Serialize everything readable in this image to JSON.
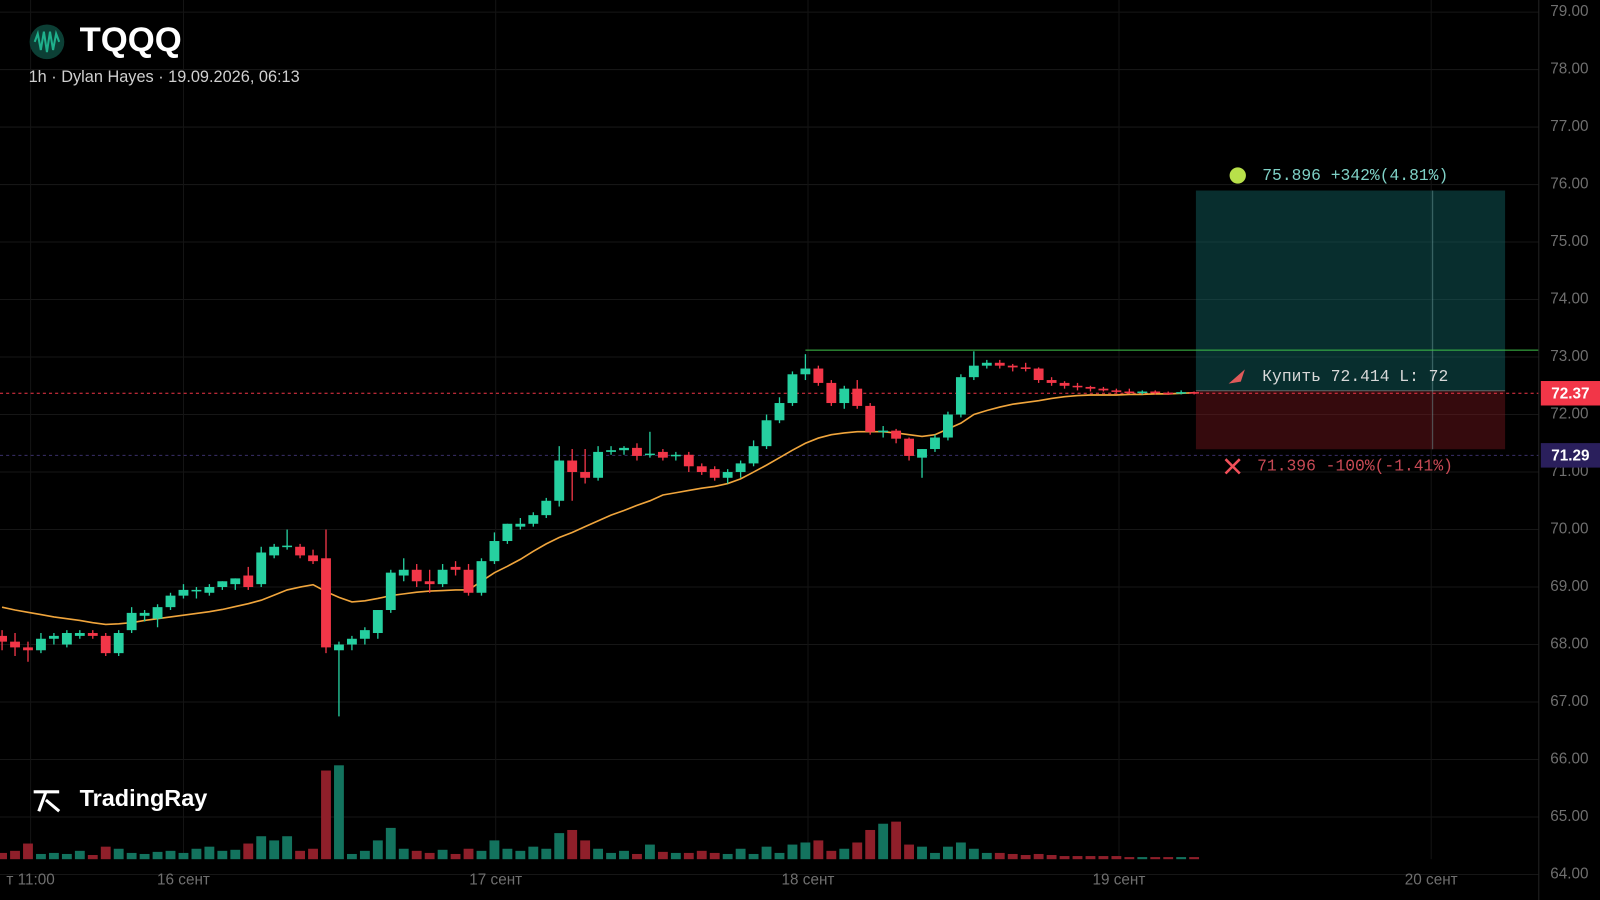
{
  "header": {
    "symbol": "TQQQ",
    "subtitle": "1h · Dylan Hayes · 19.09.2026, 06:13"
  },
  "brand": "TradingRay",
  "chart_data": {
    "type": "candlestick",
    "up_color": "#26d0a0",
    "down_color": "#f23648",
    "ma_color": "#f0a53c",
    "xlim": [
      -0.16,
      118.6
    ],
    "ylim": [
      64.0,
      79.21
    ],
    "yticks": [
      {
        "value": 64,
        "label": "64.00"
      },
      {
        "value": 65,
        "label": "65.00"
      },
      {
        "value": 66,
        "label": "66.00"
      },
      {
        "value": 67,
        "label": "67.00"
      },
      {
        "value": 68,
        "label": "68.00"
      },
      {
        "value": 69,
        "label": "69.00"
      },
      {
        "value": 70,
        "label": "70.00"
      },
      {
        "value": 71,
        "label": "71.00"
      },
      {
        "value": 72,
        "label": "72.00"
      },
      {
        "value": 73,
        "label": "73.00"
      },
      {
        "value": 74,
        "label": "74.00"
      },
      {
        "value": 75,
        "label": "75.00"
      },
      {
        "value": 76,
        "label": "76.00"
      },
      {
        "value": 77,
        "label": "77.00"
      },
      {
        "value": 78,
        "label": "78.00"
      },
      {
        "value": 79,
        "label": "79.00"
      }
    ],
    "xticks": [
      {
        "value": 2.2,
        "label": "т 11:00"
      },
      {
        "value": 14,
        "label": "16 сент"
      },
      {
        "value": 38.1,
        "label": "17 сент"
      },
      {
        "value": 62.2,
        "label": "18 сент"
      },
      {
        "value": 86.2,
        "label": "19 сент"
      },
      {
        "value": 110.3,
        "label": "20 сент"
      }
    ],
    "grid": true,
    "ohlc": [
      [
        68.15,
        68.25,
        67.9,
        68.05
      ],
      [
        68.05,
        68.2,
        67.8,
        67.95
      ],
      [
        67.95,
        68.05,
        67.7,
        67.9
      ],
      [
        67.9,
        68.2,
        67.85,
        68.1
      ],
      [
        68.1,
        68.2,
        68.0,
        68.15
      ],
      [
        68.0,
        68.25,
        67.95,
        68.2
      ],
      [
        68.15,
        68.25,
        68.1,
        68.2
      ],
      [
        68.2,
        68.25,
        68.1,
        68.15
      ],
      [
        68.15,
        68.2,
        67.8,
        67.85
      ],
      [
        67.85,
        68.25,
        67.8,
        68.2
      ],
      [
        68.25,
        68.65,
        68.2,
        68.55
      ],
      [
        68.5,
        68.6,
        68.4,
        68.55
      ],
      [
        68.45,
        68.7,
        68.3,
        68.65
      ],
      [
        68.65,
        68.9,
        68.6,
        68.85
      ],
      [
        68.85,
        69.05,
        68.8,
        68.95
      ],
      [
        68.95,
        69.0,
        68.8,
        68.95
      ],
      [
        68.9,
        69.05,
        68.85,
        69.0
      ],
      [
        69.0,
        69.1,
        68.95,
        69.1
      ],
      [
        69.05,
        69.15,
        68.95,
        69.15
      ],
      [
        69.2,
        69.35,
        68.95,
        69.0
      ],
      [
        69.05,
        69.7,
        69.0,
        69.6
      ],
      [
        69.55,
        69.75,
        69.5,
        69.7
      ],
      [
        69.7,
        70.0,
        69.65,
        69.72
      ],
      [
        69.7,
        69.75,
        69.5,
        69.55
      ],
      [
        69.55,
        69.65,
        69.4,
        69.45
      ],
      [
        69.5,
        70.0,
        67.85,
        67.95
      ],
      [
        67.9,
        68.05,
        66.75,
        68.0
      ],
      [
        68.0,
        68.15,
        67.9,
        68.1
      ],
      [
        68.1,
        68.3,
        68.0,
        68.25
      ],
      [
        68.2,
        68.6,
        68.1,
        68.6
      ],
      [
        68.6,
        69.3,
        68.55,
        69.25
      ],
      [
        69.2,
        69.5,
        69.1,
        69.3
      ],
      [
        69.3,
        69.4,
        69.0,
        69.1
      ],
      [
        69.1,
        69.3,
        68.9,
        69.05
      ],
      [
        69.05,
        69.4,
        69.0,
        69.3
      ],
      [
        69.35,
        69.45,
        69.2,
        69.3
      ],
      [
        69.3,
        69.4,
        68.85,
        68.9
      ],
      [
        68.9,
        69.5,
        68.85,
        69.45
      ],
      [
        69.45,
        69.95,
        69.4,
        69.8
      ],
      [
        69.8,
        70.1,
        69.75,
        70.1
      ],
      [
        70.05,
        70.2,
        70.0,
        70.1
      ],
      [
        70.1,
        70.3,
        70.05,
        70.25
      ],
      [
        70.25,
        70.55,
        70.2,
        70.5
      ],
      [
        70.5,
        71.45,
        70.4,
        71.2
      ],
      [
        71.2,
        71.4,
        70.5,
        71.0
      ],
      [
        71.0,
        71.4,
        70.8,
        70.9
      ],
      [
        70.9,
        71.45,
        70.85,
        71.35
      ],
      [
        71.35,
        71.45,
        71.3,
        71.38
      ],
      [
        71.38,
        71.45,
        71.3,
        71.42
      ],
      [
        71.42,
        71.5,
        71.2,
        71.28
      ],
      [
        71.3,
        71.7,
        71.25,
        71.32
      ],
      [
        71.35,
        71.4,
        71.2,
        71.25
      ],
      [
        71.28,
        71.35,
        71.2,
        71.3
      ],
      [
        71.3,
        71.35,
        71.0,
        71.1
      ],
      [
        71.1,
        71.15,
        70.95,
        71.0
      ],
      [
        71.05,
        71.1,
        70.85,
        70.9
      ],
      [
        70.9,
        71.05,
        70.8,
        71.0
      ],
      [
        71.0,
        71.2,
        70.9,
        71.15
      ],
      [
        71.15,
        71.55,
        71.1,
        71.45
      ],
      [
        71.45,
        72.0,
        71.4,
        71.9
      ],
      [
        71.9,
        72.3,
        71.85,
        72.2
      ],
      [
        72.2,
        72.75,
        72.15,
        72.7
      ],
      [
        72.7,
        73.05,
        72.6,
        72.8
      ],
      [
        72.8,
        72.85,
        72.5,
        72.55
      ],
      [
        72.55,
        72.6,
        72.15,
        72.2
      ],
      [
        72.2,
        72.5,
        72.1,
        72.45
      ],
      [
        72.45,
        72.6,
        72.1,
        72.15
      ],
      [
        72.15,
        72.2,
        71.65,
        71.7
      ],
      [
        71.7,
        71.8,
        71.6,
        71.72
      ],
      [
        71.72,
        71.75,
        71.5,
        71.58
      ],
      [
        71.58,
        71.6,
        71.2,
        71.28
      ],
      [
        71.25,
        71.4,
        70.9,
        71.4
      ],
      [
        71.4,
        71.65,
        71.35,
        71.6
      ],
      [
        71.6,
        72.05,
        71.55,
        72.0
      ],
      [
        72.0,
        72.7,
        71.95,
        72.65
      ],
      [
        72.65,
        73.1,
        72.6,
        72.85
      ],
      [
        72.85,
        72.95,
        72.8,
        72.9
      ],
      [
        72.9,
        72.95,
        72.8,
        72.85
      ],
      [
        72.85,
        72.88,
        72.75,
        72.82
      ],
      [
        72.82,
        72.9,
        72.75,
        72.8
      ],
      [
        72.8,
        72.82,
        72.55,
        72.6
      ],
      [
        72.6,
        72.65,
        72.5,
        72.55
      ],
      [
        72.55,
        72.58,
        72.45,
        72.5
      ],
      [
        72.5,
        72.55,
        72.42,
        72.48
      ],
      [
        72.48,
        72.5,
        72.4,
        72.45
      ],
      [
        72.45,
        72.48,
        72.4,
        72.42
      ],
      [
        72.42,
        72.45,
        72.38,
        72.4
      ],
      [
        72.4,
        72.45,
        72.36,
        72.38
      ],
      [
        72.38,
        72.42,
        72.35,
        72.4
      ],
      [
        72.4,
        72.42,
        72.35,
        72.38
      ],
      [
        72.38,
        72.4,
        72.34,
        72.37
      ],
      [
        72.37,
        72.42,
        72.35,
        72.39
      ],
      [
        72.39,
        72.4,
        72.35,
        72.37
      ]
    ],
    "volume": [
      6,
      8,
      15,
      5,
      6,
      5,
      8,
      4,
      12,
      10,
      6,
      5,
      7,
      8,
      6,
      10,
      12,
      8,
      9,
      15,
      22,
      18,
      22,
      8,
      10,
      85,
      90,
      5,
      8,
      18,
      30,
      10,
      8,
      6,
      9,
      5,
      10,
      8,
      18,
      10,
      8,
      12,
      10,
      25,
      28,
      18,
      10,
      6,
      8,
      5,
      14,
      7,
      6,
      6,
      8,
      6,
      5,
      10,
      5,
      12,
      6,
      14,
      16,
      18,
      8,
      10,
      16,
      28,
      34,
      36,
      14,
      12,
      6,
      12,
      16,
      10,
      6,
      6,
      5,
      4,
      5,
      4,
      3,
      3,
      3,
      3,
      3,
      2,
      2,
      2,
      2,
      2,
      2
    ],
    "ma": [
      68.65,
      68.6,
      68.56,
      68.52,
      68.48,
      68.45,
      68.42,
      68.38,
      68.35,
      68.36,
      68.38,
      68.42,
      68.45,
      68.48,
      68.51,
      68.54,
      68.57,
      68.61,
      68.66,
      68.71,
      68.77,
      68.86,
      68.95,
      69.0,
      69.04,
      68.92,
      68.82,
      68.74,
      68.76,
      68.8,
      68.85,
      68.88,
      68.91,
      68.93,
      68.94,
      68.95,
      68.95,
      69.1,
      69.25,
      69.36,
      69.48,
      69.62,
      69.75,
      69.86,
      69.95,
      70.05,
      70.15,
      70.25,
      70.33,
      70.42,
      70.5,
      70.6,
      70.64,
      70.68,
      70.72,
      70.75,
      70.8,
      70.88,
      71.0,
      71.12,
      71.25,
      71.38,
      71.5,
      71.59,
      71.65,
      71.68,
      71.7,
      71.7,
      71.7,
      71.68,
      71.65,
      71.62,
      71.65,
      71.75,
      71.85,
      72.0,
      72.07,
      72.13,
      72.18,
      72.21,
      72.24,
      72.28,
      72.31,
      72.33,
      72.34,
      72.34,
      72.34,
      72.35,
      72.35,
      72.36,
      72.36,
      72.37,
      72.38
    ],
    "level": 73.12,
    "last_price": 72.37,
    "marker_price": 71.29,
    "position": {
      "target": 75.896,
      "target_label": "75.896 +342%(4.81%)",
      "entry": 72.414,
      "entry_label": "Купить 72.414 L: 72",
      "stop": 71.396,
      "stop_label": "71.396 -100%(-1.41%)"
    }
  }
}
